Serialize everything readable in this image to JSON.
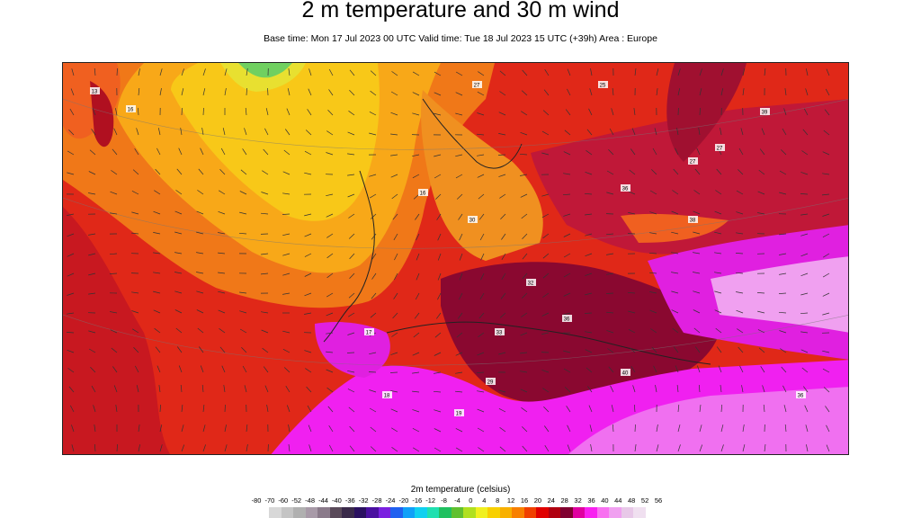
{
  "title": "2 m temperature and 30 m wind",
  "subtitle": "Base time: Mon 17 Jul 2023 00 UTC Valid time: Tue 18 Jul 2023 15 UTC (+39h) Area : Europe",
  "legend": {
    "title": "2m temperature (celsius)",
    "ticks": [
      "-80",
      "-70",
      "-60",
      "-52",
      "-48",
      "-44",
      "-40",
      "-36",
      "-32",
      "-28",
      "-24",
      "-20",
      "-16",
      "-12",
      "-8",
      "-4",
      "0",
      "4",
      "8",
      "12",
      "16",
      "20",
      "24",
      "28",
      "32",
      "36",
      "40",
      "44",
      "48",
      "52",
      "56"
    ],
    "colors": [
      "#d8d8d8",
      "#c4c4c4",
      "#b0b0b0",
      "#a89aa8",
      "#8a7a8a",
      "#5a4a5a",
      "#3a2a4a",
      "#2a1060",
      "#4a10a0",
      "#7a20e0",
      "#2060f0",
      "#10a0f8",
      "#10d0f0",
      "#20e0b0",
      "#20c060",
      "#60c030",
      "#b0e020",
      "#f0f020",
      "#f8d000",
      "#f8b000",
      "#f88000",
      "#f04000",
      "#e00000",
      "#b00010",
      "#800030",
      "#e000a0",
      "#f820f0",
      "#f870f0",
      "#f0a0f0",
      "#e8c8e8",
      "#f0e0f0"
    ]
  },
  "map": {
    "area": "Europe",
    "station_labels": [
      "13",
      "16",
      "27",
      "16",
      "30",
      "32",
      "33",
      "36",
      "36",
      "38",
      "27",
      "25",
      "29",
      "18",
      "17",
      "40",
      "19",
      "27",
      "39",
      "36"
    ]
  }
}
